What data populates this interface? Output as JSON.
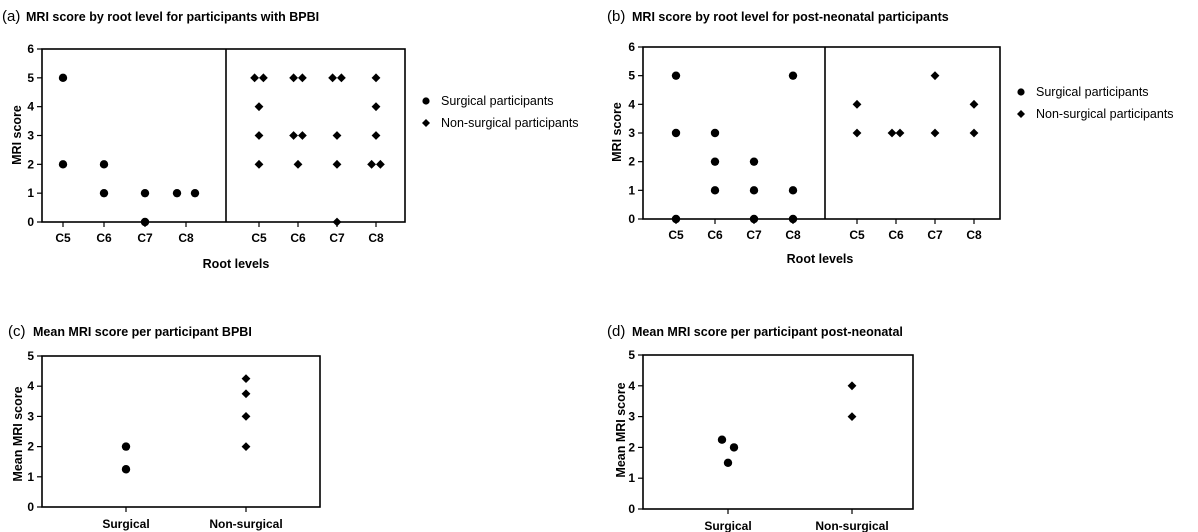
{
  "chart_data": [
    {
      "id": "a",
      "panel_letter": "(a)",
      "type": "scatter",
      "title": "MRI score by root level for participants with BPBI",
      "xlabel": "Root levels",
      "ylabel": "MRI score",
      "ylim": [
        0,
        6
      ],
      "yticks": [
        0,
        1,
        2,
        3,
        4,
        5,
        6
      ],
      "groups": [
        {
          "name": "Surgical participants",
          "marker": "circle",
          "categories": [
            "C5",
            "C6",
            "C7",
            "C8"
          ],
          "points": [
            {
              "category": "C5",
              "y": 5,
              "offset": 0
            },
            {
              "category": "C5",
              "y": 2,
              "offset": 0
            },
            {
              "category": "C6",
              "y": 2,
              "offset": 0
            },
            {
              "category": "C6",
              "y": 1,
              "offset": 0
            },
            {
              "category": "C7",
              "y": 1,
              "offset": 0
            },
            {
              "category": "C7",
              "y": 0,
              "offset": 0
            },
            {
              "category": "C8",
              "y": 1,
              "offset": -0.45
            },
            {
              "category": "C8",
              "y": 1,
              "offset": 0.45
            }
          ]
        },
        {
          "name": "Non-surgical participants",
          "marker": "diamond",
          "categories": [
            "C5",
            "C6",
            "C7",
            "C8"
          ],
          "points": [
            {
              "category": "C5",
              "y": 5,
              "offset": -0.22
            },
            {
              "category": "C5",
              "y": 5,
              "offset": 0.22
            },
            {
              "category": "C5",
              "y": 4,
              "offset": 0
            },
            {
              "category": "C5",
              "y": 3,
              "offset": 0
            },
            {
              "category": "C5",
              "y": 2,
              "offset": 0
            },
            {
              "category": "C6",
              "y": 5,
              "offset": -0.22
            },
            {
              "category": "C6",
              "y": 5,
              "offset": 0.22
            },
            {
              "category": "C6",
              "y": 3,
              "offset": -0.22
            },
            {
              "category": "C6",
              "y": 3,
              "offset": 0.22
            },
            {
              "category": "C6",
              "y": 2,
              "offset": 0
            },
            {
              "category": "C7",
              "y": 5,
              "offset": -0.22
            },
            {
              "category": "C7",
              "y": 5,
              "offset": 0.22
            },
            {
              "category": "C7",
              "y": 3,
              "offset": 0
            },
            {
              "category": "C7",
              "y": 2,
              "offset": 0
            },
            {
              "category": "C7",
              "y": 0,
              "offset": 0
            },
            {
              "category": "C8",
              "y": 5,
              "offset": 0
            },
            {
              "category": "C8",
              "y": 4,
              "offset": 0
            },
            {
              "category": "C8",
              "y": 3,
              "offset": 0
            },
            {
              "category": "C8",
              "y": 2,
              "offset": -0.22
            },
            {
              "category": "C8",
              "y": 2,
              "offset": 0.22
            }
          ]
        }
      ],
      "legend": [
        {
          "label": "Surgical participants",
          "marker": "circle"
        },
        {
          "label": "Non-surgical participants",
          "marker": "diamond"
        }
      ],
      "legend_position": "right"
    },
    {
      "id": "b",
      "panel_letter": "(b)",
      "type": "scatter",
      "title": "MRI score by root level for post-neonatal participants",
      "xlabel": "Root levels",
      "ylabel": "MRI score",
      "ylim": [
        0,
        6
      ],
      "yticks": [
        0,
        1,
        2,
        3,
        4,
        5,
        6
      ],
      "groups": [
        {
          "name": "Surgical participants",
          "marker": "circle",
          "categories": [
            "C5",
            "C6",
            "C7",
            "C8"
          ],
          "points": [
            {
              "category": "C5",
              "y": 5,
              "offset": 0
            },
            {
              "category": "C5",
              "y": 3,
              "offset": 0
            },
            {
              "category": "C5",
              "y": 0,
              "offset": 0
            },
            {
              "category": "C6",
              "y": 3,
              "offset": 0
            },
            {
              "category": "C6",
              "y": 2,
              "offset": 0
            },
            {
              "category": "C6",
              "y": 1,
              "offset": 0
            },
            {
              "category": "C7",
              "y": 2,
              "offset": 0
            },
            {
              "category": "C7",
              "y": 1,
              "offset": 0
            },
            {
              "category": "C7",
              "y": 0,
              "offset": 0
            },
            {
              "category": "C8",
              "y": 5,
              "offset": 0
            },
            {
              "category": "C8",
              "y": 1,
              "offset": 0
            },
            {
              "category": "C8",
              "y": 0,
              "offset": 0
            }
          ]
        },
        {
          "name": "Non-surgical participants",
          "marker": "diamond",
          "categories": [
            "C5",
            "C6",
            "C7",
            "C8"
          ],
          "points": [
            {
              "category": "C5",
              "y": 4,
              "offset": 0
            },
            {
              "category": "C5",
              "y": 3,
              "offset": 0
            },
            {
              "category": "C6",
              "y": 3,
              "offset": -0.2
            },
            {
              "category": "C6",
              "y": 3,
              "offset": 0.2
            },
            {
              "category": "C7",
              "y": 5,
              "offset": 0
            },
            {
              "category": "C7",
              "y": 3,
              "offset": 0
            },
            {
              "category": "C8",
              "y": 4,
              "offset": 0
            },
            {
              "category": "C8",
              "y": 3,
              "offset": 0
            }
          ]
        }
      ],
      "legend": [
        {
          "label": "Surgical participants",
          "marker": "circle"
        },
        {
          "label": "Non-surgical participants",
          "marker": "diamond"
        }
      ],
      "legend_position": "right"
    },
    {
      "id": "c",
      "panel_letter": "(c)",
      "type": "scatter",
      "title": "Mean MRI score per participant BPBI",
      "xlabel": "",
      "ylabel": "Mean MRI score",
      "ylim": [
        0,
        5
      ],
      "yticks": [
        0,
        1,
        2,
        3,
        4,
        5
      ],
      "categories": [
        "Surgical",
        "Non-surgical"
      ],
      "points": [
        {
          "category": "Surgical",
          "y": 2.0,
          "offset": 0,
          "marker": "circle"
        },
        {
          "category": "Surgical",
          "y": 1.25,
          "offset": 0,
          "marker": "circle"
        },
        {
          "category": "Non-surgical",
          "y": 4.25,
          "offset": 0,
          "marker": "diamond"
        },
        {
          "category": "Non-surgical",
          "y": 3.75,
          "offset": 0,
          "marker": "diamond"
        },
        {
          "category": "Non-surgical",
          "y": 3.0,
          "offset": 0,
          "marker": "diamond"
        },
        {
          "category": "Non-surgical",
          "y": 2.0,
          "offset": 0,
          "marker": "diamond"
        }
      ]
    },
    {
      "id": "d",
      "panel_letter": "(d)",
      "type": "scatter",
      "title": "Mean MRI score per participant post-neonatal",
      "xlabel": "",
      "ylabel": "Mean MRI score",
      "ylim": [
        0,
        5
      ],
      "yticks": [
        0,
        1,
        2,
        3,
        4,
        5
      ],
      "categories": [
        "Surgical",
        "Non-surgical"
      ],
      "points": [
        {
          "category": "Surgical",
          "y": 2.25,
          "offset": -0.25,
          "marker": "circle"
        },
        {
          "category": "Surgical",
          "y": 2.0,
          "offset": 0.25,
          "marker": "circle"
        },
        {
          "category": "Surgical",
          "y": 1.5,
          "offset": 0,
          "marker": "circle"
        },
        {
          "category": "Non-surgical",
          "y": 4.0,
          "offset": 0,
          "marker": "diamond"
        },
        {
          "category": "Non-surgical",
          "y": 3.0,
          "offset": 0,
          "marker": "diamond"
        }
      ]
    }
  ]
}
